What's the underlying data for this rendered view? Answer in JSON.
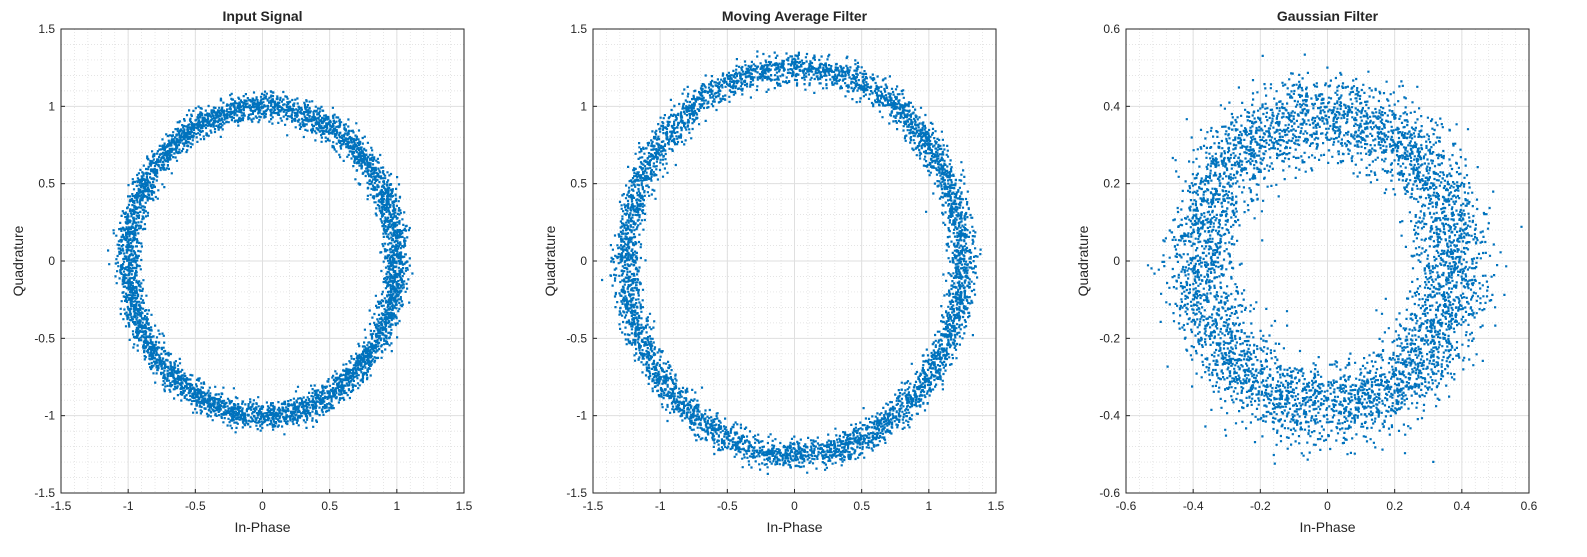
{
  "chart_data": [
    {
      "type": "scatter",
      "title": "Input Signal",
      "xlabel": "In-Phase",
      "ylabel": "Quadrature",
      "xlim": [
        -1.5,
        1.5
      ],
      "ylim": [
        -1.5,
        1.5
      ],
      "xticks": [
        -1.5,
        -1,
        -0.5,
        0,
        0.5,
        1,
        1.5
      ],
      "yticks": [
        -1.5,
        -1,
        -0.5,
        0,
        0.5,
        1,
        1.5
      ],
      "xtick_labels": [
        "-1.5",
        "-1",
        "-0.5",
        "0",
        "0.5",
        "1",
        "1.5"
      ],
      "ytick_labels": [
        "-1.5",
        "-1",
        "-0.5",
        "0",
        "0.5",
        "1",
        "1.5"
      ],
      "grid": true,
      "minor_grid": true,
      "marker_color": "#0072BD",
      "distribution": {
        "shape": "ring",
        "center": [
          0,
          0
        ],
        "mean_radius": 1.0,
        "radius_spread": 0.045,
        "num_points": 5000
      }
    },
    {
      "type": "scatter",
      "title": "Moving Average Filter",
      "xlabel": "In-Phase",
      "ylabel": "Quadrature",
      "xlim": [
        -1.5,
        1.5
      ],
      "ylim": [
        -1.5,
        1.5
      ],
      "xticks": [
        -1.5,
        -1,
        -0.5,
        0,
        0.5,
        1,
        1.5
      ],
      "yticks": [
        -1.5,
        -1,
        -0.5,
        0,
        0.5,
        1,
        1.5
      ],
      "xtick_labels": [
        "-1.5",
        "-1",
        "-0.5",
        "0",
        "0.5",
        "1",
        "1.5"
      ],
      "ytick_labels": [
        "-1.5",
        "-1",
        "-0.5",
        "0",
        "0.5",
        "1",
        "1.5"
      ],
      "grid": true,
      "minor_grid": true,
      "marker_color": "#0072BD",
      "distribution": {
        "shape": "ring",
        "center": [
          0,
          0
        ],
        "mean_radius": 1.25,
        "radius_spread": 0.05,
        "num_points": 5000
      }
    },
    {
      "type": "scatter",
      "title": "Gaussian Filter",
      "xlabel": "In-Phase",
      "ylabel": "Quadrature",
      "xlim": [
        -0.6,
        0.6
      ],
      "ylim": [
        -0.6,
        0.6
      ],
      "xticks": [
        -0.6,
        -0.4,
        -0.2,
        0,
        0.2,
        0.4,
        0.6
      ],
      "yticks": [
        -0.6,
        -0.4,
        -0.2,
        0,
        0.2,
        0.4,
        0.6
      ],
      "xtick_labels": [
        "-0.6",
        "-0.4",
        "-0.2",
        "0",
        "0.2",
        "0.4",
        "0.6"
      ],
      "ytick_labels": [
        "-0.6",
        "-0.4",
        "-0.2",
        "0",
        "0.2",
        "0.4",
        "0.6"
      ],
      "grid": true,
      "minor_grid": true,
      "marker_color": "#0072BD",
      "distribution": {
        "shape": "ring",
        "center": [
          0,
          0
        ],
        "mean_radius": 0.38,
        "radius_spread": 0.055,
        "num_points": 5000
      }
    }
  ]
}
